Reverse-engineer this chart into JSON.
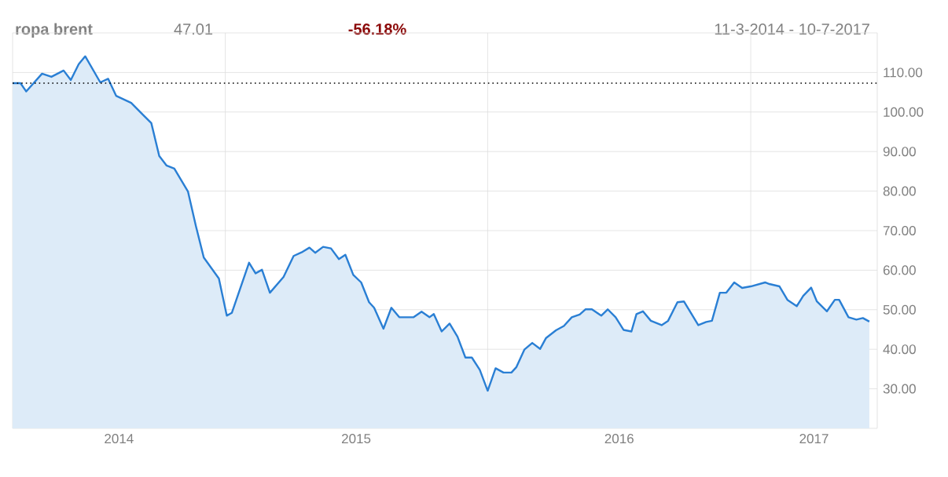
{
  "chart_data": {
    "type": "area",
    "title": "ropa brent",
    "annotations": [
      "47.01",
      "-56.18%",
      "11-3-2014 - 10-7-2017"
    ],
    "x": [
      "2014-03-11",
      "2014-03-22",
      "2014-03-30",
      "2014-04-21",
      "2014-05-04",
      "2014-05-21",
      "2014-05-31",
      "2014-06-11",
      "2014-06-20",
      "2014-07-11",
      "2014-07-22",
      "2014-08-02",
      "2014-08-23",
      "2014-09-09",
      "2014-09-20",
      "2014-10-01",
      "2014-10-11",
      "2014-10-22",
      "2014-11-10",
      "2014-11-21",
      "2014-12-02",
      "2014-12-23",
      "2015-01-03",
      "2015-01-10",
      "2015-02-03",
      "2015-02-12",
      "2015-02-21",
      "2015-03-04",
      "2015-03-23",
      "2015-04-06",
      "2015-04-17",
      "2015-04-28",
      "2015-05-06",
      "2015-05-17",
      "2015-05-28",
      "2015-06-08",
      "2015-06-17",
      "2015-06-28",
      "2015-07-09",
      "2015-07-20",
      "2015-07-27",
      "2015-08-09",
      "2015-08-20",
      "2015-08-31",
      "2015-09-20",
      "2015-10-01",
      "2015-10-12",
      "2015-10-18",
      "2015-10-29",
      "2015-11-09",
      "2015-11-20",
      "2015-12-01",
      "2015-12-10",
      "2015-12-21",
      "2016-01-01",
      "2016-01-12",
      "2016-01-23",
      "2016-02-03",
      "2016-02-10",
      "2016-02-21",
      "2016-03-03",
      "2016-03-14",
      "2016-03-22",
      "2016-04-05",
      "2016-04-16",
      "2016-04-27",
      "2016-05-08",
      "2016-05-16",
      "2016-05-25",
      "2016-06-07",
      "2016-06-16",
      "2016-06-27",
      "2016-07-08",
      "2016-07-19",
      "2016-07-26",
      "2016-08-04",
      "2016-08-15",
      "2016-08-30",
      "2016-09-08",
      "2016-09-21",
      "2016-09-30",
      "2016-10-20",
      "2016-10-31",
      "2016-11-08",
      "2016-11-19",
      "2016-11-28",
      "2016-12-09",
      "2016-12-20",
      "2017-01-01",
      "2017-01-21",
      "2017-01-27",
      "2017-02-10",
      "2017-02-21",
      "2017-03-06",
      "2017-03-15",
      "2017-03-26",
      "2017-04-03",
      "2017-04-17",
      "2017-04-28",
      "2017-05-04",
      "2017-05-17",
      "2017-05-28",
      "2017-06-06",
      "2017-06-15"
    ],
    "series": [
      {
        "color": "#2a7fd4",
        "values": [
          107.3,
          107.3,
          105.2,
          109.7,
          108.9,
          110.5,
          108.1,
          112.1,
          114.1,
          107.5,
          108.4,
          104.1,
          102.3,
          99.2,
          97.2,
          88.9,
          86.5,
          85.7,
          79.9,
          71.2,
          63.2,
          57.9,
          48.5,
          49.2,
          61.9,
          59.2,
          60.1,
          54.3,
          58.3,
          63.6,
          64.5,
          65.7,
          64.4,
          65.9,
          65.5,
          62.8,
          63.9,
          58.8,
          56.9,
          51.9,
          50.5,
          45.2,
          50.5,
          48.1,
          48.1,
          49.5,
          48.1,
          48.9,
          44.5,
          46.5,
          43.2,
          37.9,
          37.9,
          34.8,
          29.5,
          35.2,
          34.1,
          34.1,
          35.5,
          39.9,
          41.6,
          40.1,
          42.8,
          44.8,
          45.9,
          48.1,
          48.8,
          50.1,
          50.1,
          48.5,
          50.1,
          48.1,
          44.9,
          44.5,
          48.9,
          49.6,
          47.2,
          46.1,
          47.2,
          51.9,
          52.1,
          46.1,
          46.9,
          47.2,
          54.3,
          54.3,
          56.9,
          55.5,
          55.9,
          56.9,
          56.5,
          55.9,
          52.5,
          50.9,
          53.5,
          55.6,
          52.1,
          49.6,
          52.5,
          52.5,
          48.1,
          47.5,
          47.9,
          47.0
        ]
      }
    ],
    "xlim": [
      "2014-03-11",
      "2017-06-26"
    ],
    "xticks": [
      {
        "value": "2015-01-01",
        "label": null
      },
      {
        "value": "2016-01-01",
        "label": null
      },
      {
        "value": "2017-01-01",
        "label": null
      },
      {
        "value": "2014-08-06",
        "label": "2014"
      },
      {
        "value": "2015-07-02",
        "label": "2015"
      },
      {
        "value": "2016-07-02",
        "label": "2016"
      },
      {
        "value": "2017-03-30",
        "label": "2017"
      }
    ],
    "ylim": [
      20,
      120
    ],
    "yticks": [
      {
        "value": 30,
        "label": "30.00"
      },
      {
        "value": 40,
        "label": "40.00"
      },
      {
        "value": 50,
        "label": "50.00"
      },
      {
        "value": 60,
        "label": "60.00"
      },
      {
        "value": 70,
        "label": "70.00"
      },
      {
        "value": 80,
        "label": "80.00"
      },
      {
        "value": 90,
        "label": "90.00"
      },
      {
        "value": 100,
        "label": "100.00"
      },
      {
        "value": 110,
        "label": "110.00"
      }
    ],
    "grid": true,
    "ref_lines": [
      {
        "axis": "y",
        "value": 107.3,
        "color": "#000000",
        "line_style": "dotted"
      }
    ]
  }
}
